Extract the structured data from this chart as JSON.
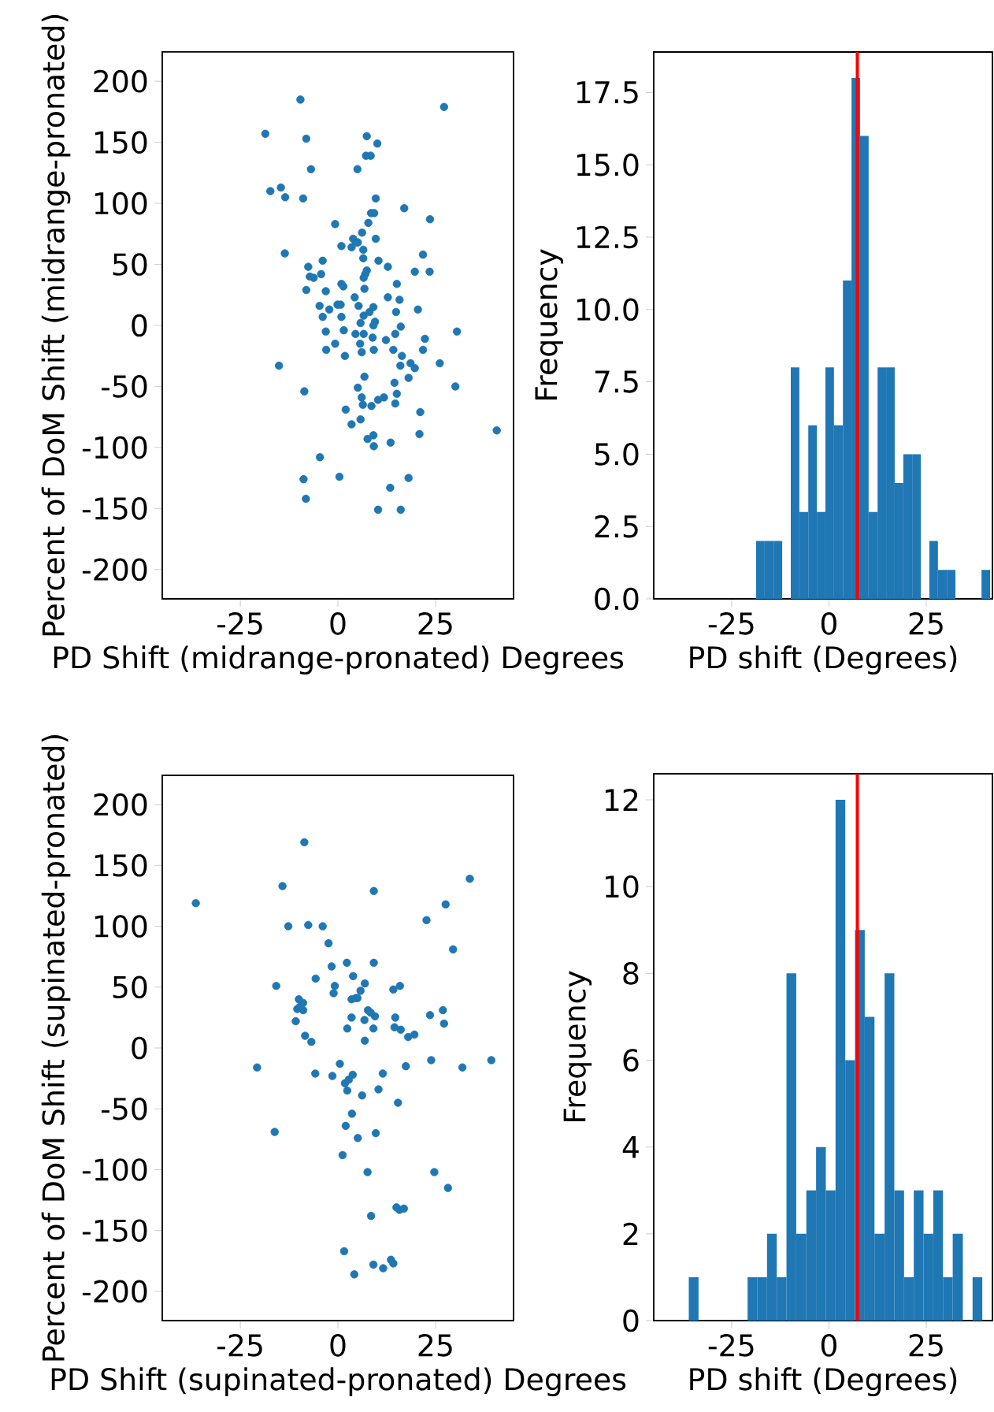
{
  "chart_data": [
    {
      "type": "scatter",
      "xlabel": "PD Shift (midrange-pronated) Degrees",
      "ylabel": "Percent of DoM Shift (midrange-pronated)",
      "color": "#1f77b4",
      "xlim": [
        -45,
        45
      ],
      "ylim": [
        -224,
        224
      ],
      "xticks": [
        -25,
        0,
        25
      ],
      "yticks": [
        -200,
        -150,
        -100,
        -50,
        0,
        50,
        100,
        150,
        200
      ],
      "x": [
        -9.6,
        27.2,
        -18.6,
        -8.1,
        7.4,
        10.1,
        7.2,
        8.4,
        -6.9,
        5.0,
        -17.3,
        -14.6,
        -13.5,
        -8.9,
        9.7,
        17.0,
        8.5,
        9.3,
        23.6,
        7.8,
        -0.7,
        6.2,
        9.7,
        3.9,
        4.6,
        3.5,
        5.1,
        6.5,
        0.9,
        21.8,
        -13.6,
        6.5,
        10.4,
        -3.9,
        -7.6,
        12.8,
        19.7,
        23.5,
        7.4,
        7.0,
        6.6,
        -7.2,
        -6.2,
        -4.3,
        0.9,
        1.4,
        15.1,
        -8.1,
        -3.1,
        6.8,
        12.8,
        15.8,
        4.3,
        -4.7,
        -2.2,
        -0.1,
        0.7,
        9.1,
        5.3,
        20.5,
        14.9,
        8.1,
        6.6,
        5.8,
        -3.9,
        0.9,
        9.5,
        9.1,
        16.1,
        1.5,
        -3.1,
        4.5,
        6.6,
        14.7,
        30.5,
        8.9,
        22.3,
        12.3,
        -0.7,
        5.7,
        -3.0,
        6.1,
        9.2,
        14.2,
        21.8,
        1.8,
        16.4,
        18.6,
        19.7,
        16.0,
        26.1,
        -15.1,
        18.1,
        6.8,
        14.5,
        5.1,
        30.1,
        -8.6,
        15.1,
        11.8,
        10.3,
        8.6,
        6.1,
        6.4,
        14.7,
        2.0,
        21.1,
        5.8,
        3.5,
        9.1,
        7.6,
        20.9,
        40.7,
        13.5,
        9.2,
        -4.6,
        0.4,
        -8.8,
        18.1,
        13.4,
        -8.2,
        10.3,
        16.1
      ],
      "values": [
        185,
        179,
        157,
        153,
        155,
        149,
        139,
        139,
        128,
        128,
        110,
        113,
        105,
        104,
        104,
        96,
        92,
        92,
        87,
        84,
        83,
        76,
        71,
        71,
        68,
        64,
        68,
        62,
        65,
        58,
        59,
        55,
        53,
        53,
        48,
        48,
        44,
        44,
        45,
        42,
        39,
        40,
        39,
        42,
        34,
        32,
        34,
        29,
        28,
        30,
        23,
        21,
        23,
        16,
        13,
        17,
        17,
        15,
        16,
        13,
        11,
        11,
        8,
        2,
        7,
        7,
        3,
        0,
        -1,
        -4,
        -5,
        -7,
        -7,
        -7,
        -5,
        -10,
        -11,
        -12,
        -15,
        -15,
        -20,
        -22,
        -20,
        -20,
        -20,
        -25,
        -25,
        -31,
        -35,
        -33,
        -31,
        -33,
        -43,
        -42,
        -47,
        -51,
        -50,
        -54,
        -56,
        -59,
        -61,
        -66,
        -59,
        -65,
        -64,
        -69,
        -71,
        -77,
        -81,
        -90,
        -93,
        -89,
        -86,
        -96,
        -99,
        -108,
        -124,
        -126,
        -125,
        -133,
        -142,
        -151,
        -151
      ]
    },
    {
      "type": "histogram",
      "xlabel": "PD shift (Degrees)",
      "ylabel": "Frequency",
      "color": "#1f77b4",
      "xlim": [
        -45,
        42
      ],
      "ylim": [
        0,
        18.9
      ],
      "xticks": [
        -25,
        0,
        25
      ],
      "yticks": [
        {
          "value": 0,
          "label": "0.0"
        },
        {
          "value": 2.5,
          "label": "2.5"
        },
        {
          "value": 5,
          "label": "5.0"
        },
        {
          "value": 7.5,
          "label": "7.5"
        },
        {
          "value": 10,
          "label": "10.0"
        },
        {
          "value": 12.5,
          "label": "12.5"
        },
        {
          "value": 15,
          "label": "15.0"
        },
        {
          "value": 17.5,
          "label": "17.5"
        }
      ],
      "bins": [
        -18.7,
        -16.5,
        -14.2,
        -12.0,
        -9.8,
        -7.6,
        -5.3,
        -3.1,
        -0.9,
        1.3,
        3.6,
        5.8,
        8.0,
        10.2,
        12.5,
        14.7,
        16.9,
        19.1,
        21.4,
        23.6,
        25.8,
        28.0,
        30.3,
        32.5,
        34.7,
        37.0,
        39.2,
        41.4
      ],
      "values": [
        2,
        2,
        2,
        0,
        8,
        3,
        6,
        3,
        8,
        6,
        11,
        18,
        16,
        3,
        8,
        8,
        4,
        5,
        5,
        0,
        2,
        1,
        1,
        0,
        0,
        0,
        1
      ],
      "ref_lines": [
        {
          "axis": "x",
          "value": 7.3,
          "color": "#ff0000"
        }
      ]
    },
    {
      "type": "scatter",
      "xlabel": "PD Shift (supinated-pronated) Degrees",
      "ylabel": "Percent of DoM Shift (supinated-pronated)",
      "color": "#1f77b4",
      "xlim": [
        -45,
        45
      ],
      "ylim": [
        -224,
        224
      ],
      "xticks": [
        -25,
        0,
        25
      ],
      "yticks": [
        -200,
        -150,
        -100,
        -50,
        0,
        50,
        100,
        150,
        200
      ],
      "x": [
        -8.6,
        33.8,
        -14.2,
        9.2,
        -36.4,
        27.6,
        22.7,
        -12.7,
        -7.6,
        -3.9,
        -2.4,
        29.5,
        2.3,
        9.2,
        -1.6,
        -5.7,
        3.9,
        6.9,
        -0.8,
        -1.1,
        -15.8,
        5.8,
        14.2,
        15.9,
        3.5,
        4.6,
        5.0,
        -10.0,
        -8.9,
        -10.4,
        -8.9,
        -9.7,
        7.7,
        8.4,
        9.5,
        3.5,
        6.8,
        14.7,
        23.6,
        26.9,
        27.2,
        -10.8,
        2.4,
        9.1,
        14.5,
        16.1,
        18.0,
        19.6,
        -8.4,
        -6.8,
        6.9,
        23.9,
        39.3,
        31.9,
        -20.7,
        0.5,
        17.4,
        -5.8,
        -1.4,
        3.8,
        2.8,
        1.8,
        2.4,
        11.5,
        10.4,
        6.2,
        15.4,
        3.6,
        2.0,
        -16.2,
        9.7,
        5.1,
        1.2,
        7.6,
        24.7,
        28.2,
        15.0,
        15.8,
        16.9,
        8.5,
        1.6,
        9.1,
        11.6,
        13.6,
        14.2,
        4.2
      ],
      "values": [
        169,
        139,
        133,
        129,
        119,
        118,
        105,
        100,
        101,
        100,
        86,
        81,
        70,
        70,
        67,
        57,
        59,
        53,
        51,
        45,
        51,
        47,
        48,
        51,
        40,
        41,
        41,
        40,
        37,
        32,
        31,
        34,
        31,
        29,
        26,
        25,
        23,
        25,
        27,
        31,
        20,
        22,
        16,
        16,
        17,
        15,
        9,
        11,
        10,
        5,
        6,
        -10,
        -10,
        -16,
        -16,
        -13,
        -15,
        -21,
        -23,
        -22,
        -26,
        -29,
        -35,
        -21,
        -34,
        -39,
        -45,
        -54,
        -64,
        -69,
        -70,
        -74,
        -88,
        -102,
        -102,
        -115,
        -131,
        -133,
        -132,
        -138,
        -167,
        -178,
        -181,
        -174,
        -177,
        -186
      ]
    },
    {
      "type": "histogram",
      "xlabel": "PD shift (Degrees)",
      "ylabel": "Frequency",
      "color": "#1f77b4",
      "xlim": [
        -45,
        42
      ],
      "ylim": [
        0,
        12.6
      ],
      "xticks": [
        -25,
        0,
        25
      ],
      "yticks": [
        0,
        2,
        4,
        6,
        8,
        10,
        12
      ],
      "bins": [
        -36.0,
        -33.5,
        -31.0,
        -28.5,
        -25.9,
        -23.4,
        -20.9,
        -18.4,
        -15.9,
        -13.4,
        -10.9,
        -8.4,
        -5.8,
        -3.3,
        -0.8,
        1.7,
        4.2,
        6.7,
        9.2,
        11.7,
        14.3,
        16.8,
        19.3,
        21.8,
        24.3,
        26.8,
        29.3,
        31.8,
        34.4,
        36.9,
        39.4
      ],
      "values": [
        1,
        0,
        0,
        0,
        0,
        0,
        1,
        1,
        2,
        1,
        8,
        2,
        3,
        4,
        3,
        12,
        6,
        9,
        7,
        2,
        8,
        3,
        1,
        3,
        2,
        3,
        1,
        2,
        0,
        1
      ],
      "ref_lines": [
        {
          "axis": "x",
          "value": 7.3,
          "color": "#ff0000"
        }
      ]
    }
  ]
}
